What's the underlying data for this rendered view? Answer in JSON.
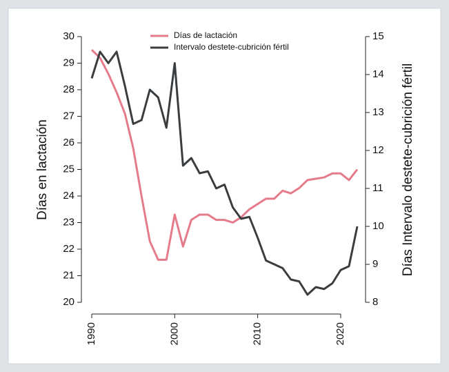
{
  "chart_data": {
    "type": "line",
    "y_label": "Días en lactación",
    "y2_label": "Días Intervalo destete-cubrición fértil",
    "x": [
      1990,
      1991,
      1992,
      1993,
      1994,
      1995,
      1996,
      1997,
      1998,
      1999,
      2000,
      2001,
      2002,
      2003,
      2004,
      2005,
      2006,
      2007,
      2008,
      2009,
      2010,
      2011,
      2012,
      2013,
      2014,
      2015,
      2016,
      2017,
      2018,
      2019,
      2020,
      2021,
      2022
    ],
    "series": [
      {
        "name": "Días de lactación",
        "color": "#e57a8a",
        "values": [
          29.5,
          29.2,
          28.6,
          27.9,
          27.1,
          25.8,
          24.0,
          22.3,
          21.6,
          21.6,
          23.3,
          22.1,
          23.1,
          23.3,
          23.3,
          23.1,
          23.1,
          23.0,
          23.2,
          23.5,
          23.7,
          23.9,
          23.9,
          24.2,
          24.1,
          24.3,
          24.6,
          24.65,
          24.7,
          24.85,
          24.85,
          24.6,
          25.0
        ]
      },
      {
        "name": "Intervalo destete-cubrición fértil",
        "color": "#3a3d40",
        "axis": "y2",
        "values": [
          13.9,
          14.6,
          14.3,
          14.6,
          13.7,
          12.7,
          12.8,
          13.6,
          13.4,
          12.6,
          14.3,
          11.6,
          11.8,
          11.4,
          11.45,
          11.0,
          11.1,
          10.5,
          10.2,
          10.25,
          9.7,
          9.1,
          9.0,
          8.9,
          8.6,
          8.55,
          8.2,
          8.4,
          8.35,
          8.5,
          8.85,
          8.95,
          10.0
        ]
      }
    ],
    "xlim": [
      1990,
      2022
    ],
    "xticks": [
      1990,
      2000,
      2010,
      2020
    ],
    "ylim": [
      20,
      30
    ],
    "yticks": [
      20,
      21,
      22,
      23,
      24,
      25,
      26,
      27,
      28,
      29,
      30
    ],
    "y2lim": [
      8,
      15
    ],
    "y2ticks": [
      8,
      9,
      10,
      11,
      12,
      13,
      14,
      15
    ],
    "legend": "top"
  }
}
